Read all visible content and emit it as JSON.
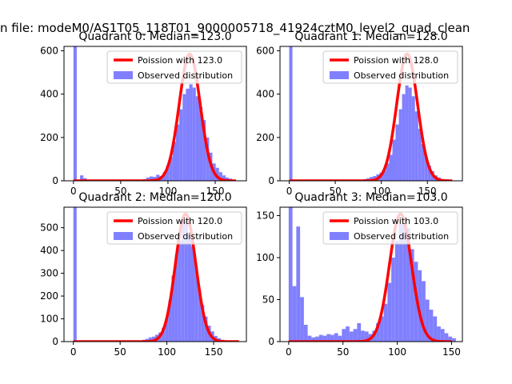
{
  "figure": {
    "suptitle": "n file: modeM0/AS1T05_118T01_9000005718_41924cztM0_level2_quad_clean"
  },
  "colors": {
    "hist": "#8080ff",
    "fit": "#ff0000",
    "axis": "#000000"
  },
  "chart_data": [
    {
      "type": "bar",
      "title": "Quadrant 0: Median=123.0",
      "legend_position": "top-right",
      "legend": [
        {
          "kind": "line",
          "label": "Poission with 123.0"
        },
        {
          "kind": "patch",
          "label": "Observed distribution"
        }
      ],
      "xlim": [
        -10,
        183
      ],
      "ylim": [
        0,
        620
      ],
      "xticks": [
        0,
        50,
        100,
        150
      ],
      "yticks": [
        0,
        200,
        400,
        600
      ],
      "bin_width": 3.5,
      "bins": [
        {
          "x": 0,
          "y": 620
        },
        {
          "x": 7,
          "y": 25
        },
        {
          "x": 10.5,
          "y": 12
        },
        {
          "x": 73.5,
          "y": 8
        },
        {
          "x": 77,
          "y": 15
        },
        {
          "x": 80.5,
          "y": 20
        },
        {
          "x": 84,
          "y": 18
        },
        {
          "x": 87.5,
          "y": 28
        },
        {
          "x": 91,
          "y": 22
        },
        {
          "x": 94.5,
          "y": 40
        },
        {
          "x": 98,
          "y": 70
        },
        {
          "x": 101.5,
          "y": 110
        },
        {
          "x": 105,
          "y": 180
        },
        {
          "x": 108.5,
          "y": 260
        },
        {
          "x": 112,
          "y": 330
        },
        {
          "x": 115.5,
          "y": 400
        },
        {
          "x": 119,
          "y": 425
        },
        {
          "x": 122.5,
          "y": 445
        },
        {
          "x": 126,
          "y": 430
        },
        {
          "x": 129.5,
          "y": 390
        },
        {
          "x": 133,
          "y": 340
        },
        {
          "x": 136.5,
          "y": 280
        },
        {
          "x": 140,
          "y": 200
        },
        {
          "x": 143.5,
          "y": 130
        },
        {
          "x": 147,
          "y": 80
        },
        {
          "x": 150.5,
          "y": 60
        },
        {
          "x": 154,
          "y": 40
        },
        {
          "x": 157.5,
          "y": 25
        },
        {
          "x": 161,
          "y": 15
        },
        {
          "x": 164.5,
          "y": 10
        }
      ],
      "fit": {
        "mean": 123.0,
        "peak": 585,
        "sigma": 11.09,
        "range": [
          0,
          172
        ]
      }
    },
    {
      "type": "bar",
      "title": "Quadrant 1: Median=128.0",
      "legend_position": "top-right",
      "legend": [
        {
          "kind": "line",
          "label": "Poission with 128.0"
        },
        {
          "kind": "patch",
          "label": "Observed distribution"
        }
      ],
      "xlim": [
        -10,
        188
      ],
      "ylim": [
        0,
        620
      ],
      "xticks": [
        0,
        50,
        100,
        150
      ],
      "yticks": [
        0,
        200,
        400,
        600
      ],
      "bin_width": 3.5,
      "bins": [
        {
          "x": 0,
          "y": 620
        },
        {
          "x": 80.5,
          "y": 8
        },
        {
          "x": 84,
          "y": 12
        },
        {
          "x": 87.5,
          "y": 18
        },
        {
          "x": 91,
          "y": 22
        },
        {
          "x": 94.5,
          "y": 30
        },
        {
          "x": 98,
          "y": 38
        },
        {
          "x": 101.5,
          "y": 50
        },
        {
          "x": 105,
          "y": 80
        },
        {
          "x": 108.5,
          "y": 120
        },
        {
          "x": 112,
          "y": 190
        },
        {
          "x": 115.5,
          "y": 260
        },
        {
          "x": 119,
          "y": 330
        },
        {
          "x": 122.5,
          "y": 400
        },
        {
          "x": 126,
          "y": 440
        },
        {
          "x": 129.5,
          "y": 430
        },
        {
          "x": 133,
          "y": 390
        },
        {
          "x": 136.5,
          "y": 320
        },
        {
          "x": 140,
          "y": 240
        },
        {
          "x": 143.5,
          "y": 170
        },
        {
          "x": 147,
          "y": 110
        },
        {
          "x": 150.5,
          "y": 70
        },
        {
          "x": 154,
          "y": 45
        },
        {
          "x": 157.5,
          "y": 25
        },
        {
          "x": 161,
          "y": 15
        },
        {
          "x": 164.5,
          "y": 8
        }
      ],
      "fit": {
        "mean": 128.0,
        "peak": 585,
        "sigma": 11.31,
        "range": [
          0,
          177
        ]
      }
    },
    {
      "type": "bar",
      "title": "Quadrant 2: Median=120.0",
      "legend_position": "top-right",
      "legend": [
        {
          "kind": "line",
          "label": "Poission with 120.0"
        },
        {
          "kind": "patch",
          "label": "Observed distribution"
        }
      ],
      "xlim": [
        -10,
        185
      ],
      "ylim": [
        0,
        590
      ],
      "xticks": [
        0,
        50,
        100,
        150
      ],
      "yticks": [
        0,
        100,
        200,
        300,
        400,
        500
      ],
      "bin_width": 3.5,
      "bins": [
        {
          "x": 0,
          "y": 590
        },
        {
          "x": 73.5,
          "y": 8
        },
        {
          "x": 77,
          "y": 12
        },
        {
          "x": 80.5,
          "y": 18
        },
        {
          "x": 84,
          "y": 22
        },
        {
          "x": 87.5,
          "y": 30
        },
        {
          "x": 91,
          "y": 40
        },
        {
          "x": 94.5,
          "y": 60
        },
        {
          "x": 98,
          "y": 100
        },
        {
          "x": 101.5,
          "y": 180
        },
        {
          "x": 105,
          "y": 290
        },
        {
          "x": 108.5,
          "y": 380
        },
        {
          "x": 112,
          "y": 440
        },
        {
          "x": 115.5,
          "y": 545
        },
        {
          "x": 119,
          "y": 530
        },
        {
          "x": 122.5,
          "y": 470
        },
        {
          "x": 126,
          "y": 420
        },
        {
          "x": 129.5,
          "y": 330
        },
        {
          "x": 133,
          "y": 230
        },
        {
          "x": 136.5,
          "y": 160
        },
        {
          "x": 140,
          "y": 110
        },
        {
          "x": 143.5,
          "y": 70
        },
        {
          "x": 147,
          "y": 45
        },
        {
          "x": 150.5,
          "y": 25
        },
        {
          "x": 154,
          "y": 15
        },
        {
          "x": 157.5,
          "y": 8
        }
      ],
      "fit": {
        "mean": 120.0,
        "peak": 560,
        "sigma": 10.95,
        "range": [
          0,
          177
        ]
      }
    },
    {
      "type": "bar",
      "title": "Quadrant 3: Median=103.0",
      "legend_position": "top-right",
      "legend": [
        {
          "kind": "line",
          "label": "Poission with 103.0"
        },
        {
          "kind": "patch",
          "label": "Observed distribution"
        }
      ],
      "xlim": [
        -8,
        160
      ],
      "ylim": [
        0,
        160
      ],
      "xticks": [
        0,
        50,
        100,
        150
      ],
      "yticks": [
        0,
        50,
        100,
        150
      ],
      "bin_width": 3.5,
      "bins": [
        {
          "x": 0,
          "y": 160
        },
        {
          "x": 3.5,
          "y": 66
        },
        {
          "x": 7,
          "y": 137
        },
        {
          "x": 10.5,
          "y": 53
        },
        {
          "x": 14,
          "y": 20
        },
        {
          "x": 17.5,
          "y": 7
        },
        {
          "x": 21,
          "y": 5
        },
        {
          "x": 24.5,
          "y": 6
        },
        {
          "x": 28,
          "y": 8
        },
        {
          "x": 31.5,
          "y": 7
        },
        {
          "x": 35,
          "y": 9
        },
        {
          "x": 38.5,
          "y": 8
        },
        {
          "x": 42,
          "y": 10
        },
        {
          "x": 45.5,
          "y": 7
        },
        {
          "x": 49,
          "y": 15
        },
        {
          "x": 52.5,
          "y": 18
        },
        {
          "x": 56,
          "y": 12
        },
        {
          "x": 59.5,
          "y": 15
        },
        {
          "x": 63,
          "y": 22
        },
        {
          "x": 66.5,
          "y": 13
        },
        {
          "x": 70,
          "y": 12
        },
        {
          "x": 73.5,
          "y": 9
        },
        {
          "x": 77,
          "y": 13
        },
        {
          "x": 80.5,
          "y": 22
        },
        {
          "x": 84,
          "y": 30
        },
        {
          "x": 87.5,
          "y": 45
        },
        {
          "x": 91,
          "y": 70
        },
        {
          "x": 94.5,
          "y": 100
        },
        {
          "x": 98,
          "y": 120
        },
        {
          "x": 101.5,
          "y": 140
        },
        {
          "x": 105,
          "y": 148
        },
        {
          "x": 108.5,
          "y": 135
        },
        {
          "x": 112,
          "y": 110
        },
        {
          "x": 115.5,
          "y": 95
        },
        {
          "x": 119,
          "y": 85
        },
        {
          "x": 122.5,
          "y": 72
        },
        {
          "x": 126,
          "y": 50
        },
        {
          "x": 129.5,
          "y": 38
        },
        {
          "x": 133,
          "y": 30
        },
        {
          "x": 136.5,
          "y": 18
        },
        {
          "x": 140,
          "y": 15
        },
        {
          "x": 143.5,
          "y": 10
        },
        {
          "x": 147,
          "y": 6
        },
        {
          "x": 150.5,
          "y": 4
        }
      ],
      "fit": {
        "mean": 103.0,
        "peak": 152,
        "sigma": 10.15,
        "range": [
          0,
          150
        ]
      }
    }
  ]
}
